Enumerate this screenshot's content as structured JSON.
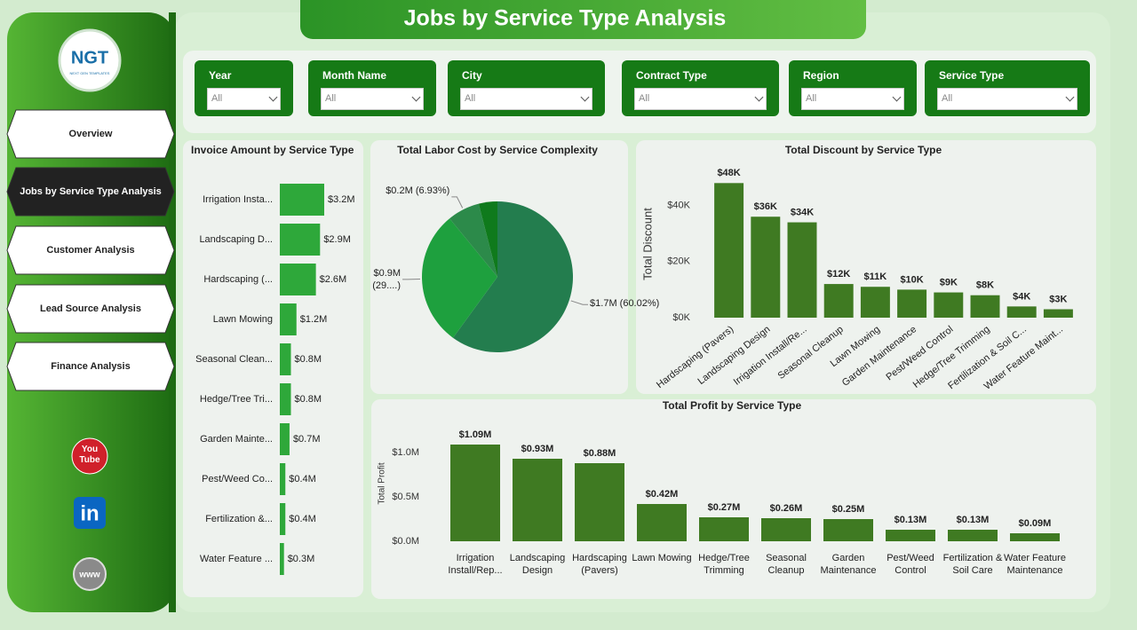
{
  "header": {
    "title": "Jobs by Service Type Analysis"
  },
  "logo": {
    "text": "NGT",
    "subtext": "NEXT GEN TEMPLATES"
  },
  "nav": [
    "Overview",
    "Jobs by Service Type Analysis",
    "Customer Analysis",
    "Lead Source Analysis",
    "Finance Analysis"
  ],
  "active_nav": 1,
  "social": {
    "youtube": "You Tube",
    "linkedin": "in",
    "web": "www"
  },
  "filters": [
    {
      "label": "Year",
      "value": "All"
    },
    {
      "label": "Month Name",
      "value": "All"
    },
    {
      "label": "City",
      "value": "All"
    },
    {
      "label": "Contract Type",
      "value": "All"
    },
    {
      "label": "Region",
      "value": "All"
    },
    {
      "label": "Service Type",
      "value": "All"
    }
  ],
  "chart_data": [
    {
      "type": "bar",
      "horizontal": true,
      "title": "Invoice Amount by Service Type",
      "categories": [
        "Irrigation Insta...",
        "Landscaping D...",
        "Hardscaping (...",
        "Lawn Mowing",
        "Seasonal Clean...",
        "Hedge/Tree Tri...",
        "Garden Mainte...",
        "Pest/Weed Co...",
        "Fertilization &...",
        "Water Feature ..."
      ],
      "values": [
        3.2,
        2.9,
        2.6,
        1.2,
        0.8,
        0.8,
        0.7,
        0.4,
        0.4,
        0.3
      ],
      "value_labels": [
        "$3.2M",
        "$2.9M",
        "$2.6M",
        "$1.2M",
        "$0.8M",
        "$0.8M",
        "$0.7M",
        "$0.4M",
        "$0.4M",
        "$0.3M"
      ],
      "color": "#2ea83a"
    },
    {
      "type": "pie",
      "title": "Total Labor Cost by Service Complexity",
      "values": [
        60.02,
        29.05,
        6.93,
        4.0
      ],
      "value_labels": [
        "$1.7M (60.02%)",
        "$0.9M (29....)",
        "$0.2M (6.93%)",
        null
      ],
      "colors": [
        "#237d4e",
        "#1ea03e",
        "#2c8a4a",
        "#0f7a1c"
      ]
    },
    {
      "type": "bar",
      "title": "Total Discount by Service Type",
      "y_label": "Total Discount",
      "categories": [
        "Hardscaping (Pavers)",
        "Landscaping Design",
        "Irrigation Install/Re...",
        "Seasonal Cleanup",
        "Lawn Mowing",
        "Garden Maintenance",
        "Pest/Weed Control",
        "Hedge/Tree Trimming",
        "Fertilization & Soil C...",
        "Water Feature Maint..."
      ],
      "values": [
        48000,
        36000,
        34000,
        12000,
        11000,
        10000,
        9000,
        8000,
        4000,
        3000
      ],
      "value_labels": [
        "$48K",
        "$36K",
        "$34K",
        "$12K",
        "$11K",
        "$10K",
        "$9K",
        "$8K",
        "$4K",
        "$3K"
      ],
      "color": "#3f7a22",
      "ylim": [
        0,
        50000
      ],
      "yticks": [
        {
          "value": 0,
          "label": "$0K"
        },
        {
          "value": 20000,
          "label": "$20K"
        },
        {
          "value": 40000,
          "label": "$40K"
        }
      ],
      "grid": false
    },
    {
      "type": "bar",
      "title": "Total Profit by Service Type",
      "y_label": "Total Profit",
      "categories": [
        "Irrigation Install/Rep...",
        "Landscaping Design",
        "Hardscaping (Pavers)",
        "Lawn Mowing",
        "Hedge/Tree Trimming",
        "Seasonal Cleanup",
        "Garden Maintenance",
        "Pest/Weed Control",
        "Fertilization & Soil Care",
        "Water Feature Maintenance"
      ],
      "values": [
        1090000,
        930000,
        880000,
        420000,
        270000,
        260000,
        250000,
        130000,
        130000,
        90000
      ],
      "value_labels": [
        "$1.09M",
        "$0.93M",
        "$0.88M",
        "$0.42M",
        "$0.27M",
        "$0.26M",
        "$0.25M",
        "$0.13M",
        "$0.13M",
        "$0.09M"
      ],
      "color": "#3f7a22",
      "ylim": [
        0,
        1300000
      ],
      "yticks": [
        {
          "value": 0,
          "label": "$0.0M"
        },
        {
          "value": 500000,
          "label": "$0.5M"
        },
        {
          "value": 1000000,
          "label": "$1.0M"
        }
      ],
      "grid": false
    }
  ]
}
